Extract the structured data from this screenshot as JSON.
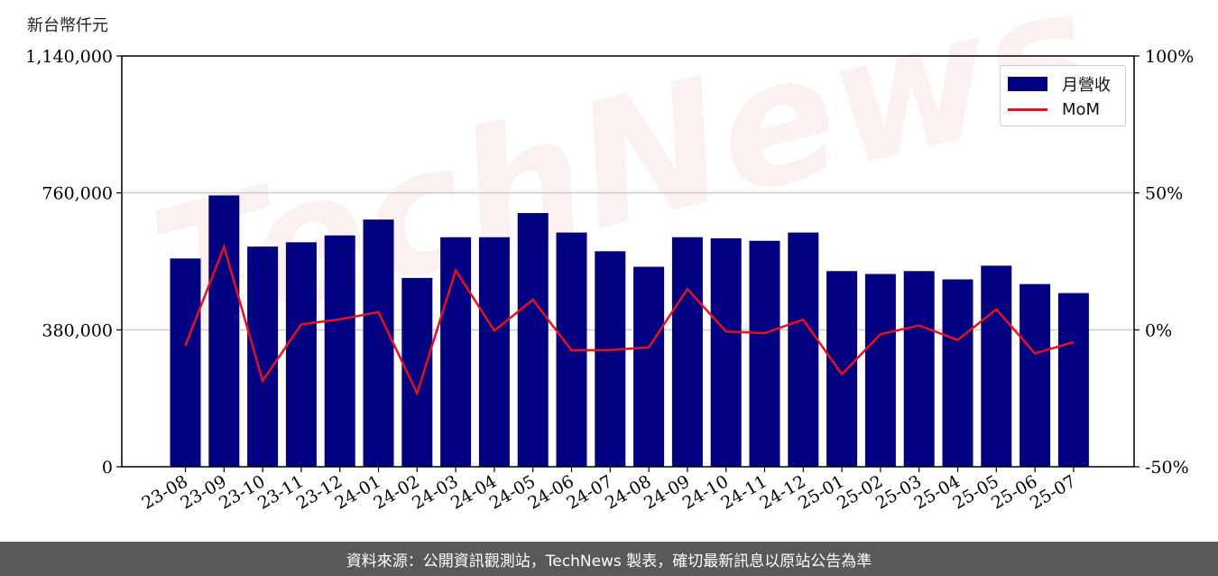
{
  "unit_label": "新台幣仟元",
  "footer_text": "資料來源：公開資訊觀測站，TechNews 製表，確切最新訊息以原站公告為準",
  "watermark_text": "TechNews",
  "colors": {
    "bar": "#000080",
    "line": "#e8101a",
    "grid": "#cccccc",
    "footer_bg": "#595959"
  },
  "chart_data": {
    "type": "bar",
    "categories": [
      "23-08",
      "23-09",
      "23-10",
      "23-11",
      "23-12",
      "24-01",
      "24-02",
      "24-03",
      "24-04",
      "24-05",
      "24-06",
      "24-07",
      "24-08",
      "24-09",
      "24-10",
      "24-11",
      "24-12",
      "25-01",
      "25-02",
      "25-03",
      "25-04",
      "25-05",
      "25-06",
      "25-07"
    ],
    "series": [
      {
        "name": "月營收",
        "type": "bar",
        "axis": "left",
        "values": [
          578000,
          753000,
          611000,
          623000,
          642000,
          686000,
          524000,
          637000,
          637000,
          704000,
          650000,
          598000,
          555000,
          637000,
          634000,
          627000,
          650000,
          543000,
          535000,
          543000,
          520000,
          558000,
          507000,
          482000
        ]
      },
      {
        "name": "MoM",
        "type": "line",
        "axis": "right",
        "values": [
          -5.8,
          30.3,
          -18.6,
          2.0,
          3.8,
          6.5,
          -23.2,
          21.7,
          -0.3,
          11.0,
          -7.5,
          -7.4,
          -6.4,
          14.9,
          -0.6,
          -1.2,
          3.7,
          -16.2,
          -1.6,
          1.6,
          -3.7,
          7.5,
          -8.6,
          -4.5
        ]
      }
    ],
    "left_axis": {
      "ylim": [
        0,
        1140000
      ],
      "ticks": [
        "0",
        "380,000",
        "760,000",
        "1,140,000"
      ]
    },
    "right_axis": {
      "ylim": [
        -50,
        100
      ],
      "ticks": [
        "-50%",
        "0%",
        "50%",
        "100%"
      ]
    },
    "grid": "horizontal",
    "legend": "top-right"
  }
}
